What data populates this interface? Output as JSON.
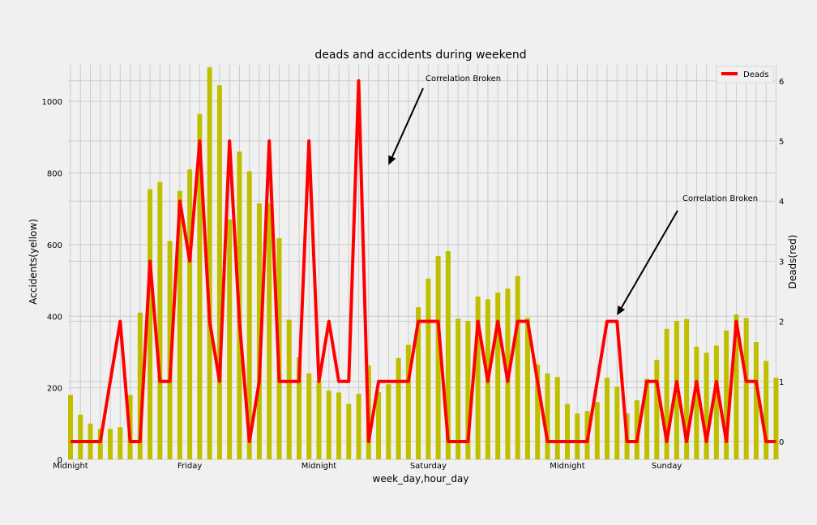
{
  "chart_data": {
    "type": "bar+line",
    "title": "deads and accidents during weekend",
    "xlabel": "week_day,hour_day",
    "ylabel_left": "Accidents(yellow)",
    "ylabel_right": "Deads(red)",
    "ylim_left": [
      0,
      1100
    ],
    "ylim_right": [
      -0.2,
      6.3
    ],
    "yticks_left": [
      "0",
      "200",
      "400",
      "600",
      "800",
      "1000"
    ],
    "yticks_right": [
      "0",
      "1",
      "2",
      "3",
      "4",
      "5",
      "6"
    ],
    "x_tick_labels": [
      {
        "index": 0,
        "label": "Midnight"
      },
      {
        "index": 12,
        "label": "Friday"
      },
      {
        "index": 25,
        "label": "Midnight"
      },
      {
        "index": 36,
        "label": "Saturday"
      },
      {
        "index": 50,
        "label": "Midnight"
      },
      {
        "index": 60,
        "label": "Sunday"
      }
    ],
    "bar_color": "#bfbf00",
    "line_color": "#ff0000",
    "accidents": [
      180,
      125,
      100,
      85,
      85,
      90,
      180,
      410,
      755,
      775,
      610,
      750,
      810,
      965,
      1095,
      1045,
      670,
      860,
      805,
      715,
      715,
      618,
      390,
      285,
      240,
      220,
      192,
      187,
      155,
      183,
      262,
      188,
      210,
      283,
      320,
      425,
      505,
      568,
      582,
      393,
      387,
      455,
      447,
      466,
      477,
      512,
      395,
      265,
      240,
      230,
      155,
      128,
      135,
      160,
      228,
      203,
      128,
      165,
      225,
      278,
      365,
      387,
      392,
      315,
      298,
      318,
      360,
      405,
      395,
      328,
      275,
      228
    ],
    "deads": [
      0,
      0,
      0,
      0,
      1,
      2,
      0,
      0,
      3,
      1,
      1,
      4,
      3,
      5,
      2,
      1,
      5,
      2,
      0,
      1,
      5,
      1,
      1,
      1,
      5,
      1,
      2,
      1,
      1,
      6,
      0,
      1,
      1,
      1,
      1,
      2,
      2,
      2,
      0,
      0,
      0,
      2,
      1,
      2,
      1,
      2,
      2,
      1,
      0,
      0,
      0,
      0,
      0,
      1,
      2,
      2,
      0,
      0,
      1,
      1,
      0,
      1,
      0,
      1,
      0,
      1,
      0,
      2,
      1,
      1,
      0,
      0
    ],
    "legend": [
      {
        "label": "Deads",
        "color": "#ff0000",
        "position": "top-right"
      }
    ],
    "annotations": [
      {
        "text": "Correlation Broken",
        "target_index": 32,
        "target_value_right": 4.6
      },
      {
        "text": "Correlation Broken",
        "target_index": 55,
        "target_value_right": 2.1
      }
    ],
    "grid": true
  }
}
